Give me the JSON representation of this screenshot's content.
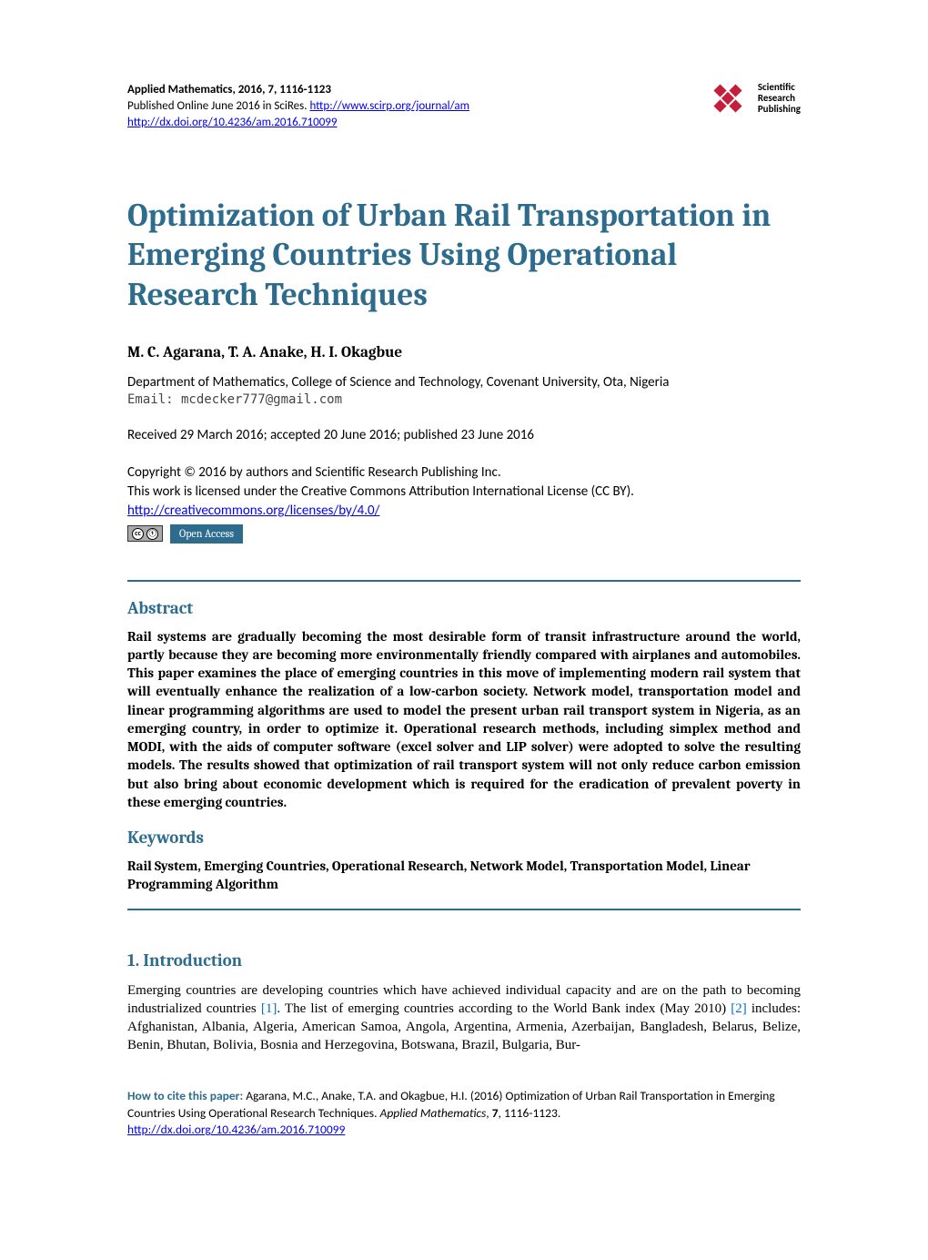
{
  "header": {
    "journal_line": "Applied Mathematics, 2016, 7, 1116-1123",
    "published_prefix": "Published Online June 2016 in SciRes. ",
    "journal_url": "http://www.scirp.org/journal/am",
    "doi_url": "http://dx.doi.org/10.4236/am.2016.710099",
    "publisher_name": "Scientific Research Publishing"
  },
  "title": "Optimization of Urban Rail Transportation in Emerging Countries Using Operational Research Techniques",
  "authors": "M. C. Agarana, T. A. Anake, H. I. Okagbue",
  "affiliation": "Department of Mathematics, College of Science and Technology, Covenant University, Ota, Nigeria",
  "email": "Email: mcdecker777@gmail.com",
  "dates": "Received 29 March 2016; accepted 20 June 2016; published 23 June 2016",
  "copyright": {
    "line1": "Copyright © 2016 by authors and Scientific Research Publishing Inc.",
    "line2": "This work is licensed under the Creative Commons Attribution International License (CC BY).",
    "license_url": "http://creativecommons.org/licenses/by/4.0/",
    "open_access": "Open Access"
  },
  "abstract": {
    "heading": "Abstract",
    "text": "Rail systems are gradually becoming the most desirable form of transit infrastructure around the world, partly because they are becoming more environmentally friendly compared with airplanes and automobiles. This paper examines the place of emerging countries in this move of implementing modern rail system that will eventually enhance the realization of a low-carbon society. Network model, transportation model and linear programming algorithms are used to model the present urban rail transport system in Nigeria, as an emerging country, in order to optimize it. Operational research methods, including simplex method and MODI, with the aids of computer software (excel solver and LIP solver) were adopted to solve the resulting models. The results showed that optimization of rail transport system will not only reduce carbon emission but also bring about economic development which is required for the eradication of prevalent poverty in these emerging countries."
  },
  "keywords": {
    "heading": "Keywords",
    "text": "Rail System, Emerging Countries, Operational Research, Network Model, Transportation Model, Linear Programming Algorithm"
  },
  "introduction": {
    "heading": "1. Introduction",
    "text_part1": "Emerging countries are developing countries which have achieved individual capacity and are on the path to becoming industrialized countries ",
    "ref1": "[1]",
    "text_part2": ". The list of emerging countries according to the World Bank index (May 2010) ",
    "ref2": "[2]",
    "text_part3": " includes: Afghanistan, Albania, Algeria, American Samoa, Angola, Argentina, Armenia, Azerbaijan, Bangladesh, Belarus, Belize, Benin, Bhutan, Bolivia, Bosnia and Herzegovina, Botswana, Brazil, Bulgaria, Bur-"
  },
  "citation": {
    "label": "How to cite this paper: ",
    "text_part1": "Agarana, M.C., Anake, T.A. and Okagbue, H.I. (2016) Optimization of Urban Rail Transportation in Emerging Countries Using Operational Research Techniques. ",
    "journal_italic": "Applied Mathematics",
    "text_part2": ", ",
    "volume_bold": "7",
    "text_part3": ", 1116-1123.",
    "doi_url": "http://dx.doi.org/10.4236/am.2016.710099"
  },
  "colors": {
    "accent": "#2e6c8e",
    "link": "#0000ee",
    "ref_link": "#0070c0",
    "logo_red": "#c41e3a"
  }
}
